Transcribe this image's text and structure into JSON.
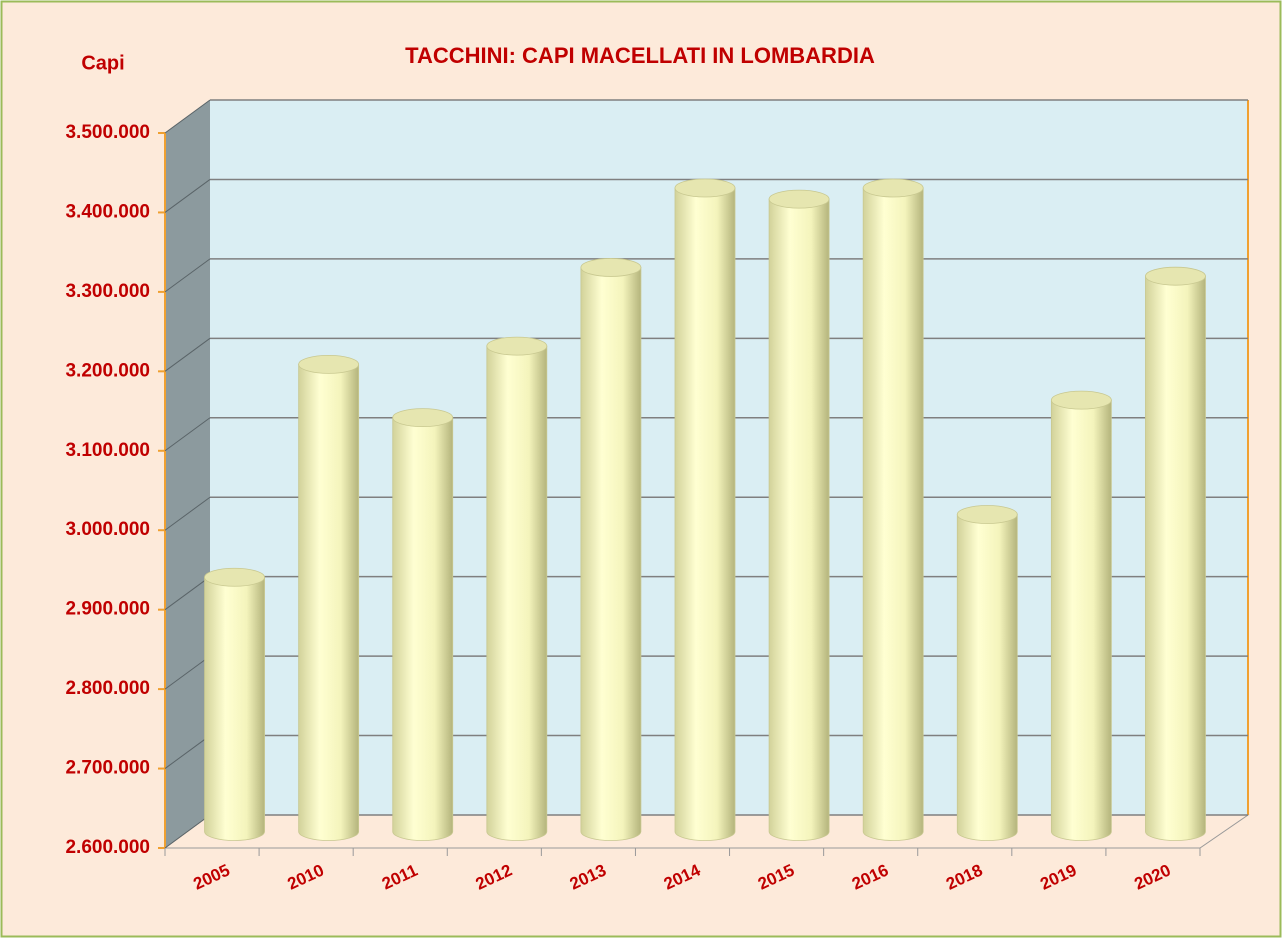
{
  "chart_data": {
    "type": "bar3d",
    "title": "TACCHINI: CAPI MACELLATI  IN LOMBARDIA",
    "y_label": "Capi",
    "categories": [
      "2005",
      "2010",
      "2011",
      "2012",
      "2013",
      "2014",
      "2015",
      "2016",
      "2018",
      "2019",
      "2020"
    ],
    "values": [
      2920000,
      3188000,
      3121000,
      3211000,
      3310000,
      3410000,
      3396000,
      3410000,
      2999000,
      3143000,
      3299000
    ],
    "color": "#ffffc8",
    "ylim": [
      2600000,
      3500000
    ],
    "yticks": [
      {
        "value": 2600000,
        "label": "2.600.000"
      },
      {
        "value": 2700000,
        "label": "2.700.000"
      },
      {
        "value": 2800000,
        "label": "2.800.000"
      },
      {
        "value": 2900000,
        "label": "2.900.000"
      },
      {
        "value": 3000000,
        "label": "3.000.000"
      },
      {
        "value": 3100000,
        "label": "3.100.000"
      },
      {
        "value": 3200000,
        "label": "3.200.000"
      },
      {
        "value": 3300000,
        "label": "3.300.000"
      },
      {
        "value": 3400000,
        "label": "3.400.000"
      },
      {
        "value": 3500000,
        "label": "3.500.000"
      }
    ],
    "grid": true
  }
}
